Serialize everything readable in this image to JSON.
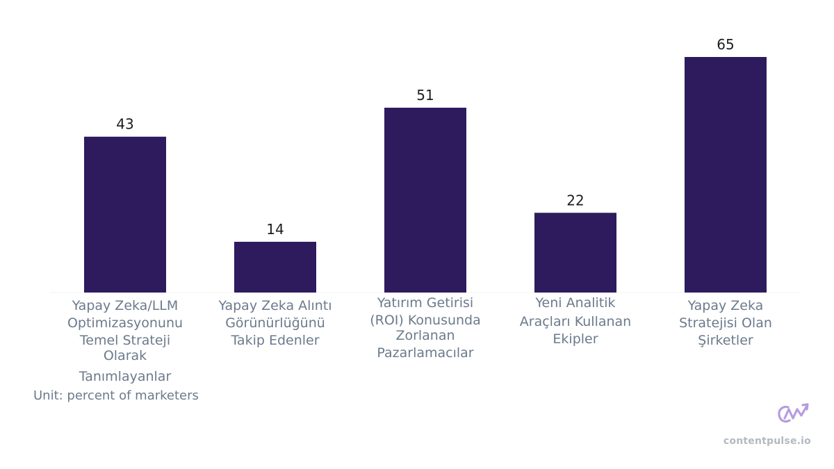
{
  "chart_data": {
    "type": "bar",
    "categories": [
      "Yapay Zeka/LLM Optimizasyonunu Temel Strateji Olarak Tanımlayanlar",
      "Yapay Zeka Alıntı Görünürlüğünü Takip Edenler",
      "Yatırım Getirisi (ROI) Konusunda Zorlanan Pazarlamacılar",
      "Yeni Analitik Araçları Kullanan Ekipler",
      "Yapay Zeka Stratejisi Olan Şirketler"
    ],
    "category_lines": [
      [
        "Yapay Zeka/LLM",
        "Optimizasyonunu",
        "Temel Strateji",
        "Olarak",
        "Tanımlayanlar"
      ],
      [
        "Yapay Zeka Alıntı",
        "Görünürlüğünü",
        "Takip Edenler"
      ],
      [
        "Yatırım Getirisi",
        "(ROI) Konusunda",
        "Zorlanan",
        "Pazarlamacılar"
      ],
      [
        "Yeni Analitik",
        "Araçları Kullanan",
        "Ekipler"
      ],
      [
        "Yapay Zeka",
        "Stratejisi Olan",
        "Şirketler"
      ]
    ],
    "values": [
      43,
      14,
      51,
      22,
      65
    ],
    "ylim": [
      0,
      65
    ],
    "grid": false,
    "bar_color": "#2d1b5e",
    "unit_note": "Unit: percent of marketers"
  },
  "brand": {
    "name": "contentpulse.io",
    "logo_color": "#b79be0"
  }
}
